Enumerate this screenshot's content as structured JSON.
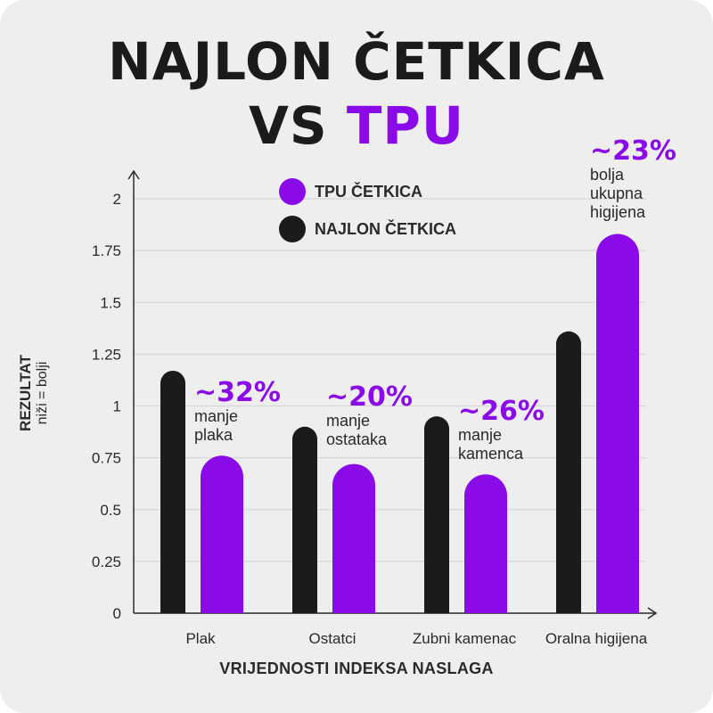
{
  "title": {
    "line1": "NAJLON ČETKICA",
    "line2_prefix": "VS ",
    "line2_accent": "TPU"
  },
  "colors": {
    "tpu": "#8a0be8",
    "nylon": "#1c1a1d",
    "grid": "#d8d7d9",
    "axis": "#2a2a2a"
  },
  "legend": {
    "tpu_label": "TPU ČETKICA",
    "nylon_label": "NAJLON ČETKICA"
  },
  "chart_data": {
    "type": "bar",
    "categories": [
      "Plak",
      "Ostatci",
      "Zubni kamenac",
      "Oralna higijena"
    ],
    "series": [
      {
        "name": "NAJLON ČETKICA",
        "values": [
          1.17,
          0.9,
          0.95,
          1.36
        ]
      },
      {
        "name": "TPU ČETKICA",
        "values": [
          0.76,
          0.72,
          0.67,
          1.83
        ]
      }
    ],
    "ylim": [
      0,
      2.1
    ],
    "yticks": [
      "0",
      "0.25",
      "0.5",
      "0.75",
      "1",
      "1.25",
      "1.5",
      "1.75",
      "2"
    ],
    "ytick_values": [
      0,
      0.25,
      0.5,
      0.75,
      1,
      1.25,
      1.5,
      1.75,
      2
    ],
    "xlabel": "VRIJEDNOSTI INDEKSA NASLAGA",
    "ylabel": "REZULTAT",
    "ylabel_sub": "niži = bolji",
    "grid": true,
    "legend_position": "top-center",
    "annotations": [
      {
        "pct": "~32%",
        "desc": [
          "manje",
          "plaka"
        ]
      },
      {
        "pct": "~20%",
        "desc": [
          "manje",
          "ostataka"
        ]
      },
      {
        "pct": "~26%",
        "desc": [
          "manje",
          "kamenca"
        ]
      },
      {
        "pct": "~23%",
        "desc": [
          "bolja",
          "ukupna",
          "higijena"
        ]
      }
    ]
  }
}
